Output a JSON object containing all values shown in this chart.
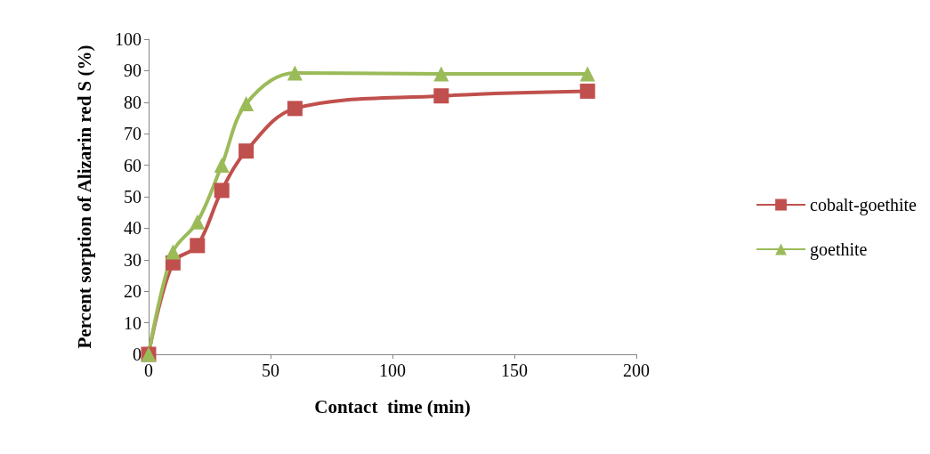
{
  "chart_data": {
    "type": "line",
    "xlabel": "Contact  time (min)",
    "ylabel": "Percent sorption of Alizarin red S (%)",
    "x": [
      0,
      10,
      20,
      30,
      40,
      60,
      120,
      180
    ],
    "series": [
      {
        "name": "cobalt-goethite",
        "color": "#c0504d",
        "marker": "square",
        "values": [
          0,
          29,
          34.5,
          52,
          64.5,
          78,
          82,
          83.5
        ]
      },
      {
        "name": "goethite",
        "color": "#9bbb59",
        "marker": "triangle",
        "values": [
          0,
          32.5,
          42,
          60,
          79.5,
          89.3,
          89,
          89
        ]
      }
    ],
    "xlim": [
      0,
      200
    ],
    "xticks": [
      0,
      50,
      100,
      150,
      200
    ],
    "ylim": [
      0,
      100
    ],
    "yticks": [
      0,
      10,
      20,
      30,
      40,
      50,
      60,
      70,
      80,
      90,
      100
    ],
    "grid": false,
    "legend": "right",
    "line_style": "solid"
  }
}
